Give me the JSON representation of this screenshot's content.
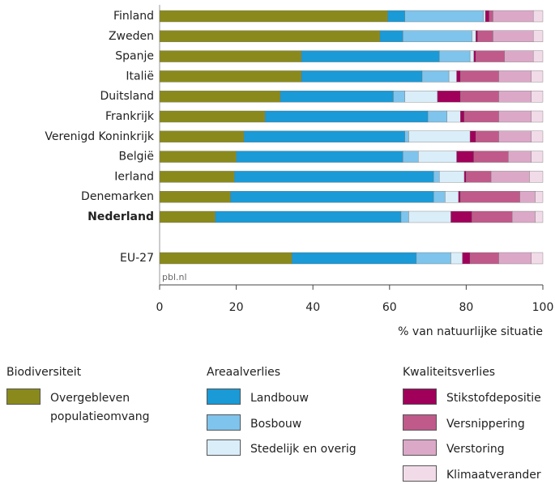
{
  "chart_data": {
    "type": "stacked-barh",
    "categories": [
      "Finland",
      "Zweden",
      "Spanje",
      "Italië",
      "Duitsland",
      "Frankrijk",
      "Verenigd Koninkrijk",
      "België",
      "Ierland",
      "Denemarken",
      "Nederland",
      "EU-27"
    ],
    "series": [
      {
        "name": "Overgebleven populatieomvang",
        "color": "#8a8a1c",
        "values": [
          59.5,
          57.5,
          37,
          37,
          31.5,
          27.5,
          22,
          20,
          19.5,
          18.5,
          14.5,
          34.5
        ]
      },
      {
        "name": "Landbouw",
        "color": "#1a9ad6",
        "values": [
          4.5,
          6,
          36,
          31.5,
          29.5,
          42.5,
          42,
          43.5,
          52,
          53,
          48.5,
          32.5
        ]
      },
      {
        "name": "Bosbouw",
        "color": "#7ec4ec",
        "values": [
          20.5,
          18,
          8,
          7,
          3,
          5,
          1,
          4,
          1.5,
          3,
          2,
          9
        ]
      },
      {
        "name": "Stedelijk en overig",
        "color": "#daeefa",
        "values": [
          0.5,
          1,
          1,
          2,
          8.5,
          3.5,
          16,
          10,
          6.5,
          3.5,
          11,
          3
        ]
      },
      {
        "name": "Stikstofdepositie",
        "color": "#a0005a",
        "values": [
          1,
          0.5,
          0.5,
          1,
          6,
          1,
          1.5,
          4.5,
          0.5,
          0.5,
          5.5,
          2
        ]
      },
      {
        "name": "Versnippering",
        "color": "#c05a8a",
        "values": [
          1,
          4,
          7.5,
          10,
          10,
          9,
          6,
          9,
          6.5,
          15.5,
          10.5,
          7.5
        ]
      },
      {
        "name": "Verstoring",
        "color": "#dca8c8",
        "values": [
          10.5,
          10.5,
          7.5,
          8.5,
          8.5,
          8.5,
          8.5,
          6,
          10,
          4,
          6,
          8.5
        ]
      },
      {
        "name": "Klimaatverander",
        "color": "#f2dbe8",
        "values": [
          2.5,
          2.5,
          2.5,
          3,
          3,
          3,
          3,
          3,
          3.5,
          2,
          2,
          3
        ]
      }
    ],
    "legend_groups": [
      "Biodiversiteit",
      "Areaalverlies",
      "Kwaliteitsverlies"
    ],
    "xlim": [
      0,
      100
    ],
    "xticks": [
      0,
      20,
      40,
      60,
      80,
      100
    ],
    "xlabel": "% van natuurlijke situatie",
    "source": "pbl.nl"
  }
}
